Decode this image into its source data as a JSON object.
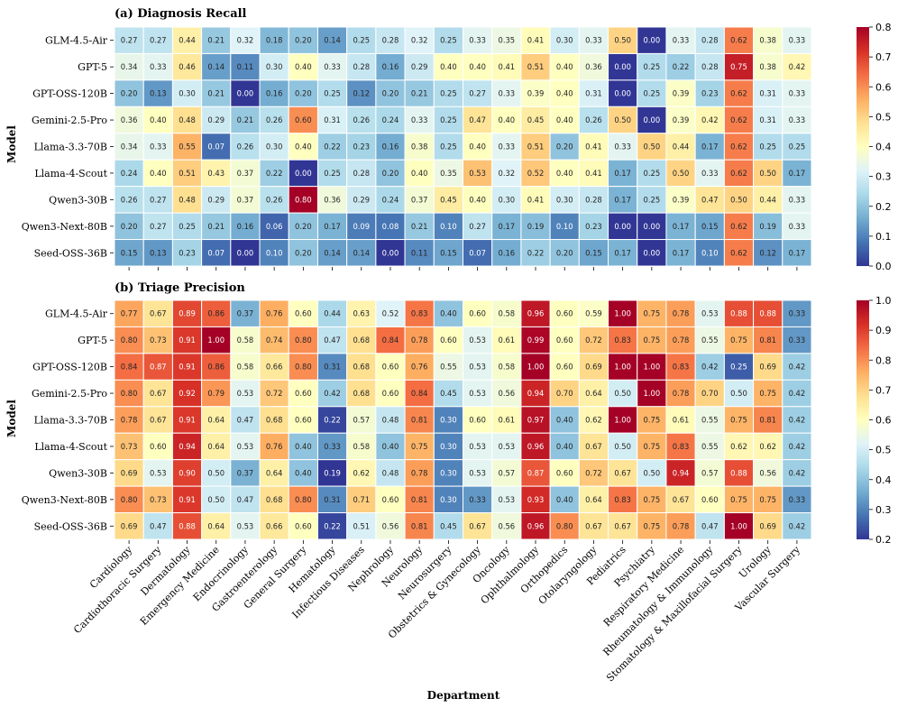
{
  "chart_data": [
    {
      "type": "heatmap",
      "panel": "a",
      "title": "(a) Diagnosis Recall",
      "xlabel": "Department",
      "ylabel": "Model",
      "rows": [
        "GLM-4.5-Air",
        "GPT-5",
        "GPT-OSS-120B",
        "Gemini-2.5-Pro",
        "Llama-3.3-70B",
        "Llama-4-Scout",
        "Qwen3-30B",
        "Qwen3-Next-80B",
        "Seed-OSS-36B"
      ],
      "columns": [
        "Cardiology",
        "Cardiothoracic Surgery",
        "Dermatology",
        "Emergency Medicine",
        "Endocrinology",
        "Gastroenterology",
        "General Surgery",
        "Hematology",
        "Infectious Diseases",
        "Nephrology",
        "Neurology",
        "Neurosurgery",
        "Obstetrics & Gynecology",
        "Oncology",
        "Ophthalmology",
        "Orthopedics",
        "Otolaryngology",
        "Pediatrics",
        "Psychiatry",
        "Respiratory Medicine",
        "Rheumatology & Immunology",
        "Stomatology & Maxillofacial Surgery",
        "Urology",
        "Vascular Surgery"
      ],
      "values": [
        [
          0.27,
          0.27,
          0.44,
          0.21,
          0.32,
          0.18,
          0.2,
          0.14,
          0.25,
          0.28,
          0.32,
          0.25,
          0.33,
          0.35,
          0.41,
          0.3,
          0.33,
          0.5,
          0.0,
          0.33,
          0.28,
          0.62,
          0.38,
          0.33
        ],
        [
          0.34,
          0.33,
          0.46,
          0.14,
          0.11,
          0.3,
          0.4,
          0.33,
          0.28,
          0.16,
          0.29,
          0.4,
          0.4,
          0.41,
          0.51,
          0.4,
          0.36,
          0.0,
          0.25,
          0.22,
          0.28,
          0.75,
          0.38,
          0.42
        ],
        [
          0.2,
          0.13,
          0.3,
          0.21,
          0.0,
          0.16,
          0.2,
          0.25,
          0.12,
          0.2,
          0.21,
          0.25,
          0.27,
          0.33,
          0.39,
          0.4,
          0.31,
          0.0,
          0.25,
          0.39,
          0.23,
          0.62,
          0.31,
          0.33
        ],
        [
          0.36,
          0.4,
          0.48,
          0.29,
          0.21,
          0.26,
          0.6,
          0.31,
          0.26,
          0.24,
          0.33,
          0.25,
          0.47,
          0.4,
          0.45,
          0.4,
          0.26,
          0.5,
          0.0,
          0.39,
          0.42,
          0.62,
          0.31,
          0.33
        ],
        [
          0.34,
          0.33,
          0.55,
          0.07,
          0.26,
          0.3,
          0.4,
          0.22,
          0.23,
          0.16,
          0.38,
          0.25,
          0.4,
          0.33,
          0.51,
          0.2,
          0.41,
          0.33,
          0.5,
          0.44,
          0.17,
          0.62,
          0.25,
          0.25
        ],
        [
          0.24,
          0.4,
          0.51,
          0.43,
          0.37,
          0.22,
          0.0,
          0.25,
          0.28,
          0.2,
          0.4,
          0.35,
          0.53,
          0.32,
          0.52,
          0.4,
          0.41,
          0.17,
          0.25,
          0.5,
          0.33,
          0.62,
          0.5,
          0.17
        ],
        [
          0.26,
          0.27,
          0.48,
          0.29,
          0.37,
          0.26,
          0.8,
          0.36,
          0.29,
          0.24,
          0.37,
          0.45,
          0.4,
          0.3,
          0.41,
          0.3,
          0.28,
          0.17,
          0.25,
          0.39,
          0.47,
          0.5,
          0.44,
          0.33
        ],
        [
          0.2,
          0.27,
          0.25,
          0.21,
          0.16,
          0.06,
          0.2,
          0.17,
          0.09,
          0.08,
          0.21,
          0.1,
          0.27,
          0.17,
          0.19,
          0.1,
          0.23,
          0.0,
          0.0,
          0.17,
          0.15,
          0.62,
          0.19,
          0.33
        ],
        [
          0.15,
          0.13,
          0.23,
          0.07,
          0.0,
          0.1,
          0.2,
          0.14,
          0.14,
          0.0,
          0.11,
          0.15,
          0.07,
          0.16,
          0.22,
          0.2,
          0.15,
          0.17,
          0.0,
          0.17,
          0.1,
          0.62,
          0.12,
          0.17
        ]
      ],
      "vmin": 0.0,
      "vmax": 0.8,
      "colorbar_ticks": [
        "0.0",
        "0.1",
        "0.2",
        "0.3",
        "0.4",
        "0.5",
        "0.6",
        "0.7",
        "0.8"
      ],
      "colormap": "RdYlBu_r"
    },
    {
      "type": "heatmap",
      "panel": "b",
      "title": "(b) Triage Precision",
      "xlabel": "Department",
      "ylabel": "Model",
      "rows": [
        "GLM-4.5-Air",
        "GPT-5",
        "GPT-OSS-120B",
        "Gemini-2.5-Pro",
        "Llama-3.3-70B",
        "Llama-4-Scout",
        "Qwen3-30B",
        "Qwen3-Next-80B",
        "Seed-OSS-36B"
      ],
      "columns": [
        "Cardiology",
        "Cardiothoracic Surgery",
        "Dermatology",
        "Emergency Medicine",
        "Endocrinology",
        "Gastroenterology",
        "General Surgery",
        "Hematology",
        "Infectious Diseases",
        "Nephrology",
        "Neurology",
        "Neurosurgery",
        "Obstetrics & Gynecology",
        "Oncology",
        "Ophthalmology",
        "Orthopedics",
        "Otolaryngology",
        "Pediatrics",
        "Psychiatry",
        "Respiratory Medicine",
        "Rheumatology & Immunology",
        "Stomatology & Maxillofacial Surgery",
        "Urology",
        "Vascular Surgery"
      ],
      "values": [
        [
          0.77,
          0.67,
          0.89,
          0.86,
          0.37,
          0.76,
          0.6,
          0.44,
          0.63,
          0.52,
          0.83,
          0.4,
          0.6,
          0.58,
          0.96,
          0.6,
          0.59,
          1.0,
          0.75,
          0.78,
          0.53,
          0.88,
          0.88,
          0.33
        ],
        [
          0.8,
          0.73,
          0.91,
          1.0,
          0.58,
          0.74,
          0.8,
          0.47,
          0.68,
          0.84,
          0.78,
          0.6,
          0.53,
          0.61,
          0.99,
          0.6,
          0.72,
          0.83,
          0.75,
          0.78,
          0.55,
          0.75,
          0.81,
          0.33
        ],
        [
          0.84,
          0.87,
          0.91,
          0.86,
          0.58,
          0.66,
          0.8,
          0.31,
          0.68,
          0.6,
          0.76,
          0.55,
          0.53,
          0.58,
          1.0,
          0.6,
          0.69,
          1.0,
          1.0,
          0.83,
          0.42,
          0.25,
          0.69,
          0.42
        ],
        [
          0.8,
          0.67,
          0.92,
          0.79,
          0.53,
          0.72,
          0.6,
          0.42,
          0.68,
          0.6,
          0.84,
          0.45,
          0.53,
          0.56,
          0.94,
          0.7,
          0.64,
          0.5,
          1.0,
          0.78,
          0.7,
          0.5,
          0.75,
          0.42
        ],
        [
          0.78,
          0.67,
          0.91,
          0.64,
          0.47,
          0.68,
          0.6,
          0.22,
          0.57,
          0.48,
          0.81,
          0.3,
          0.6,
          0.61,
          0.97,
          0.4,
          0.62,
          1.0,
          0.75,
          0.61,
          0.55,
          0.75,
          0.81,
          0.42
        ],
        [
          0.73,
          0.6,
          0.94,
          0.64,
          0.53,
          0.76,
          0.4,
          0.33,
          0.58,
          0.4,
          0.75,
          0.3,
          0.53,
          0.53,
          0.96,
          0.4,
          0.67,
          0.5,
          0.75,
          0.83,
          0.55,
          0.62,
          0.62,
          0.42
        ],
        [
          0.69,
          0.53,
          0.9,
          0.5,
          0.37,
          0.64,
          0.4,
          0.19,
          0.62,
          0.48,
          0.78,
          0.3,
          0.53,
          0.57,
          0.87,
          0.6,
          0.72,
          0.67,
          0.5,
          0.94,
          0.57,
          0.88,
          0.56,
          0.42
        ],
        [
          0.8,
          0.73,
          0.91,
          0.5,
          0.47,
          0.68,
          0.8,
          0.31,
          0.71,
          0.6,
          0.81,
          0.3,
          0.33,
          0.53,
          0.93,
          0.4,
          0.64,
          0.83,
          0.75,
          0.67,
          0.6,
          0.75,
          0.75,
          0.33
        ],
        [
          0.69,
          0.47,
          0.88,
          0.64,
          0.53,
          0.66,
          0.6,
          0.22,
          0.51,
          0.56,
          0.81,
          0.45,
          0.67,
          0.56,
          0.96,
          0.8,
          0.67,
          0.67,
          0.75,
          0.78,
          0.47,
          1.0,
          0.69,
          0.42
        ]
      ],
      "vmin": 0.2,
      "vmax": 1.0,
      "colorbar_ticks": [
        "0.2",
        "0.3",
        "0.4",
        "0.5",
        "0.6",
        "0.7",
        "0.8",
        "0.9",
        "1.0"
      ],
      "colormap": "RdYlBu_r"
    }
  ]
}
